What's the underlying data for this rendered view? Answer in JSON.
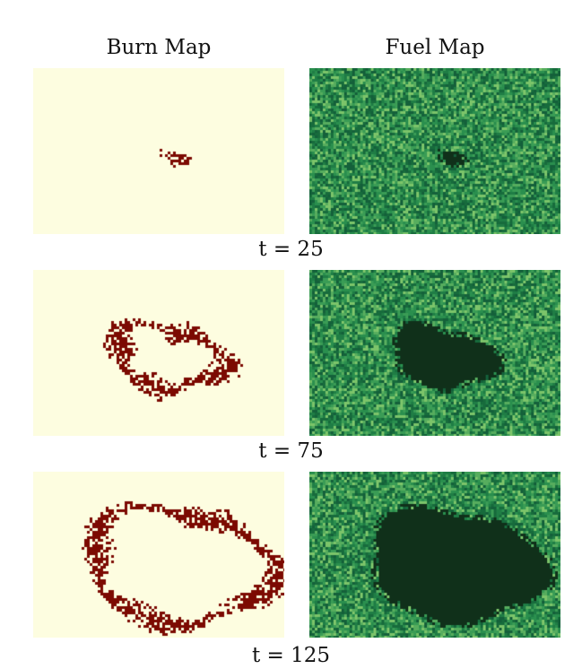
{
  "columns": {
    "burn": "Burn Map",
    "fuel": "Fuel Map"
  },
  "rows": [
    {
      "label": "t = 25"
    },
    {
      "label": "t = 75"
    },
    {
      "label": "t = 125"
    }
  ],
  "colors": {
    "burn_background": "#fdfde0",
    "burn_fire": "#7c0a02",
    "fuel_dark": "#10301a",
    "fuel_green": "#1f7d45",
    "fuel_light": "#7cc46a"
  }
}
